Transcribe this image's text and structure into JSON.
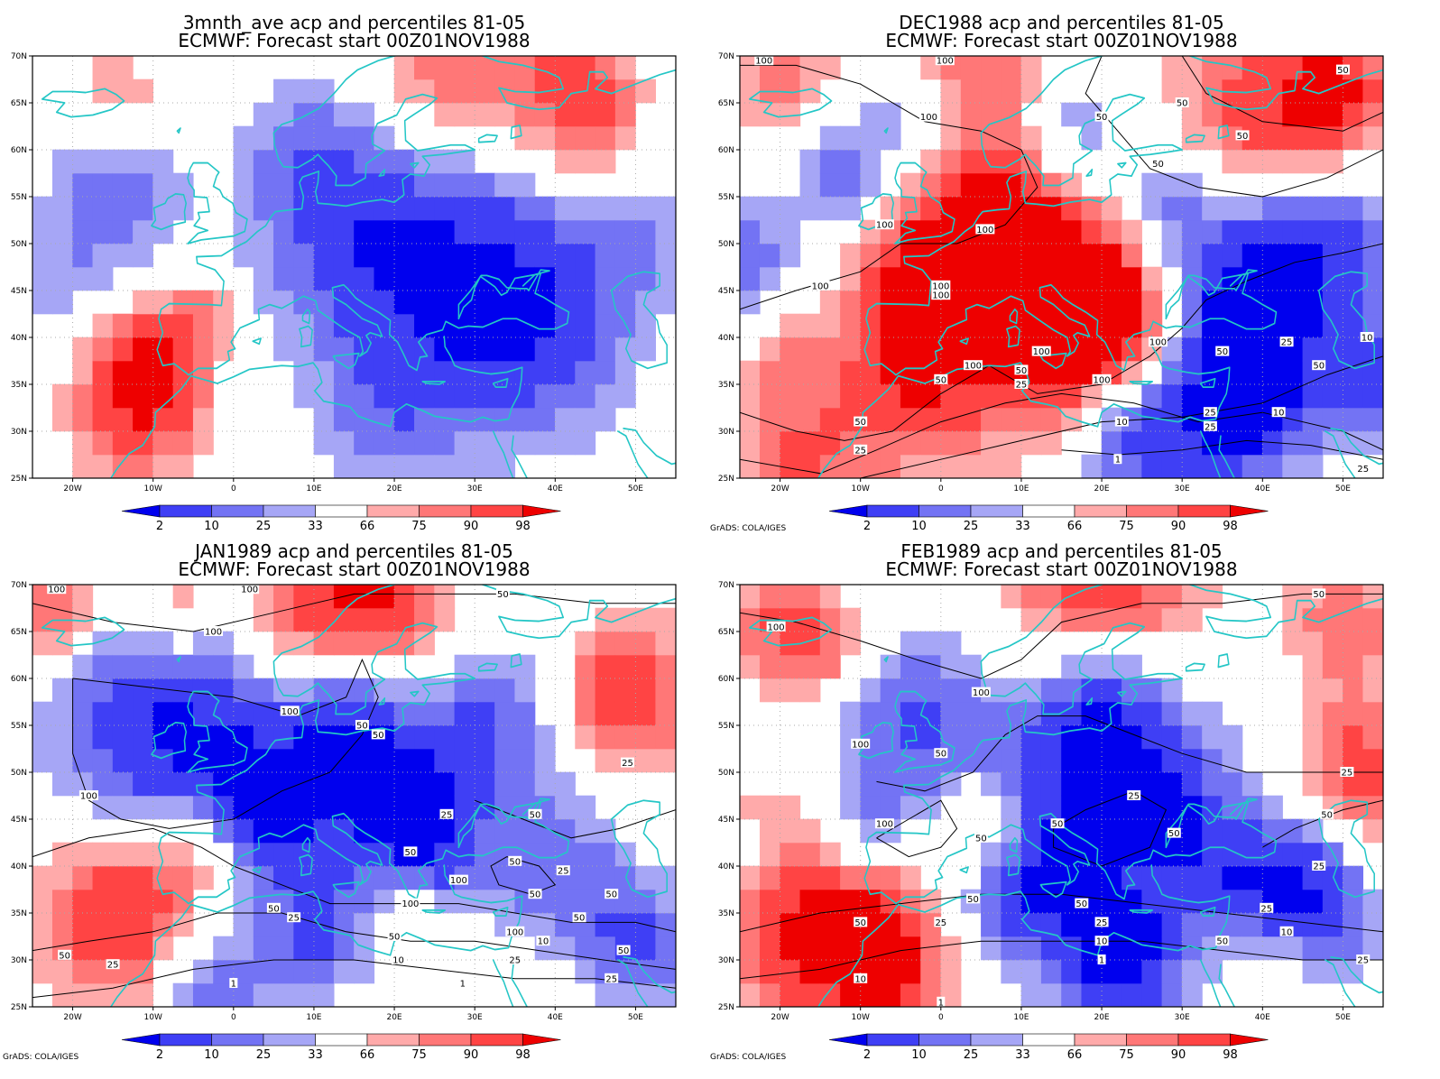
{
  "credit": "GrADS: COLA/IGES",
  "x_tick_labels": [
    "20W",
    "10W",
    "0",
    "10E",
    "20E",
    "30E",
    "40E",
    "50E"
  ],
  "y_tick_labels": [
    "70N",
    "65N",
    "60N",
    "55N",
    "50N",
    "45N",
    "40N",
    "35N",
    "30N",
    "25N"
  ],
  "colorbar": {
    "labels": [
      "2",
      "10",
      "25",
      "33",
      "66",
      "75",
      "90",
      "98"
    ],
    "colors": [
      "#0000ee",
      "#3f3ff5",
      "#7373f4",
      "#a6a6f6",
      "#ffffff",
      "#ffaaaa",
      "#ff7777",
      "#ff4444",
      "#ee0000"
    ]
  },
  "colors": {
    "coast": "#24c6c6",
    "frame": "#000000",
    "grid": "#aaaaaa",
    "contour": "#000000"
  },
  "panels": [
    {
      "title1": "3mnth_ave acp and percentiles 81-05",
      "title2": "ECMWF: Forecast start 00Z01NOV1988",
      "show_credit": false,
      "contour_labels": []
    },
    {
      "title1": "DEC1988 acp and percentiles 81-05",
      "title2": "ECMWF: Forecast start 00Z01NOV1988",
      "show_credit": true,
      "contour_labels": [
        {
          "lon": -22,
          "lat": 69.5,
          "text": "100"
        },
        {
          "lon": 0.5,
          "lat": 69.5,
          "text": "100"
        },
        {
          "lon": -1.5,
          "lat": 63.5,
          "text": "100"
        },
        {
          "lon": 30,
          "lat": 65,
          "text": "50"
        },
        {
          "lon": 37.5,
          "lat": 61.5,
          "text": "50"
        },
        {
          "lon": 50,
          "lat": 68.5,
          "text": "50"
        },
        {
          "lon": 20,
          "lat": 63.5,
          "text": "50"
        },
        {
          "lon": 27,
          "lat": 58.5,
          "text": "50"
        },
        {
          "lon": 5.5,
          "lat": 51.5,
          "text": "100"
        },
        {
          "lon": -7,
          "lat": 52,
          "text": "100"
        },
        {
          "lon": -15,
          "lat": 45.5,
          "text": "100"
        },
        {
          "lon": 0,
          "lat": 45.5,
          "text": "100"
        },
        {
          "lon": 0,
          "lat": 44.5,
          "text": "100"
        },
        {
          "lon": 12.5,
          "lat": 38.5,
          "text": "100"
        },
        {
          "lon": 4,
          "lat": 37,
          "text": "100"
        },
        {
          "lon": 20,
          "lat": 35.5,
          "text": "100"
        },
        {
          "lon": 27,
          "lat": 39.5,
          "text": "100"
        },
        {
          "lon": 10,
          "lat": 36.5,
          "text": "50"
        },
        {
          "lon": 10,
          "lat": 35,
          "text": "25"
        },
        {
          "lon": 0,
          "lat": 35.5,
          "text": "50"
        },
        {
          "lon": -10,
          "lat": 31,
          "text": "50"
        },
        {
          "lon": -10,
          "lat": 28,
          "text": "25"
        },
        {
          "lon": 22.5,
          "lat": 31,
          "text": "10"
        },
        {
          "lon": 22,
          "lat": 27,
          "text": "1"
        },
        {
          "lon": 35,
          "lat": 38.5,
          "text": "50"
        },
        {
          "lon": 43,
          "lat": 39.5,
          "text": "25"
        },
        {
          "lon": 47,
          "lat": 37,
          "text": "50"
        },
        {
          "lon": 53,
          "lat": 40,
          "text": "10"
        },
        {
          "lon": 33.5,
          "lat": 32,
          "text": "25"
        },
        {
          "lon": 33.5,
          "lat": 30.5,
          "text": "25"
        },
        {
          "lon": 42,
          "lat": 32,
          "text": "10"
        },
        {
          "lon": 52.5,
          "lat": 26,
          "text": "25"
        }
      ]
    },
    {
      "title1": "JAN1989 acp and percentiles 81-05",
      "title2": "ECMWF: Forecast start 00Z01NOV1988",
      "show_credit": true,
      "contour_labels": [
        {
          "lon": -22,
          "lat": 69.5,
          "text": "100"
        },
        {
          "lon": 2,
          "lat": 69.5,
          "text": "100"
        },
        {
          "lon": -2.5,
          "lat": 65,
          "text": "100"
        },
        {
          "lon": 33.5,
          "lat": 69,
          "text": "50"
        },
        {
          "lon": 7,
          "lat": 56.5,
          "text": "100"
        },
        {
          "lon": 16,
          "lat": 55,
          "text": "50"
        },
        {
          "lon": 18,
          "lat": 54,
          "text": "50"
        },
        {
          "lon": -18,
          "lat": 47.5,
          "text": "100"
        },
        {
          "lon": 26.5,
          "lat": 45.5,
          "text": "25"
        },
        {
          "lon": 22,
          "lat": 41.5,
          "text": "50"
        },
        {
          "lon": 37.5,
          "lat": 45.5,
          "text": "50"
        },
        {
          "lon": 49,
          "lat": 51,
          "text": "25"
        },
        {
          "lon": 35,
          "lat": 40.5,
          "text": "50"
        },
        {
          "lon": 41,
          "lat": 39.5,
          "text": "25"
        },
        {
          "lon": 28,
          "lat": 38.5,
          "text": "100"
        },
        {
          "lon": 22,
          "lat": 36,
          "text": "100"
        },
        {
          "lon": 37.5,
          "lat": 37,
          "text": "50"
        },
        {
          "lon": 47,
          "lat": 37,
          "text": "50"
        },
        {
          "lon": 43,
          "lat": 34.5,
          "text": "50"
        },
        {
          "lon": 35,
          "lat": 33,
          "text": "100"
        },
        {
          "lon": 38.5,
          "lat": 32,
          "text": "10"
        },
        {
          "lon": 48.5,
          "lat": 31,
          "text": "50"
        },
        {
          "lon": 47,
          "lat": 28,
          "text": "25"
        },
        {
          "lon": 5,
          "lat": 35.5,
          "text": "50"
        },
        {
          "lon": 7.5,
          "lat": 34.5,
          "text": "25"
        },
        {
          "lon": 20,
          "lat": 32.5,
          "text": "50"
        },
        {
          "lon": 20.5,
          "lat": 30,
          "text": "10"
        },
        {
          "lon": 35,
          "lat": 30,
          "text": "25"
        },
        {
          "lon": -21,
          "lat": 30.5,
          "text": "50"
        },
        {
          "lon": -15,
          "lat": 29.5,
          "text": "25"
        },
        {
          "lon": 0,
          "lat": 27.5,
          "text": "1"
        },
        {
          "lon": 28.5,
          "lat": 27.5,
          "text": "1"
        }
      ]
    },
    {
      "title1": "FEB1989 acp and percentiles 81-05",
      "title2": "ECMWF: Forecast start 00Z01NOV1988",
      "show_credit": true,
      "contour_labels": [
        {
          "lon": -20.5,
          "lat": 65.5,
          "text": "100"
        },
        {
          "lon": 47,
          "lat": 69,
          "text": "50"
        },
        {
          "lon": 5,
          "lat": 58.5,
          "text": "100"
        },
        {
          "lon": -10,
          "lat": 53,
          "text": "100"
        },
        {
          "lon": 0,
          "lat": 52,
          "text": "50"
        },
        {
          "lon": 50.5,
          "lat": 50,
          "text": "25"
        },
        {
          "lon": 24,
          "lat": 47.5,
          "text": "25"
        },
        {
          "lon": 14.5,
          "lat": 44.5,
          "text": "50"
        },
        {
          "lon": 29,
          "lat": 43.5,
          "text": "50"
        },
        {
          "lon": -7,
          "lat": 44.5,
          "text": "100"
        },
        {
          "lon": 5,
          "lat": 43,
          "text": "50"
        },
        {
          "lon": 48,
          "lat": 45.5,
          "text": "50"
        },
        {
          "lon": 47,
          "lat": 40,
          "text": "25"
        },
        {
          "lon": 4,
          "lat": 36.5,
          "text": "50"
        },
        {
          "lon": 17.5,
          "lat": 36,
          "text": "50"
        },
        {
          "lon": 40.5,
          "lat": 35.5,
          "text": "25"
        },
        {
          "lon": 20,
          "lat": 34,
          "text": "25"
        },
        {
          "lon": 43,
          "lat": 33,
          "text": "10"
        },
        {
          "lon": 35,
          "lat": 32,
          "text": "50"
        },
        {
          "lon": 52.5,
          "lat": 30,
          "text": "25"
        },
        {
          "lon": 20,
          "lat": 32,
          "text": "10"
        },
        {
          "lon": 20,
          "lat": 30,
          "text": "1"
        },
        {
          "lon": -10,
          "lat": 34,
          "text": "50"
        },
        {
          "lon": 0,
          "lat": 34,
          "text": "25"
        },
        {
          "lon": -10,
          "lat": 28,
          "text": "10"
        },
        {
          "lon": 0,
          "lat": 25.5,
          "text": "1"
        }
      ]
    }
  ]
}
